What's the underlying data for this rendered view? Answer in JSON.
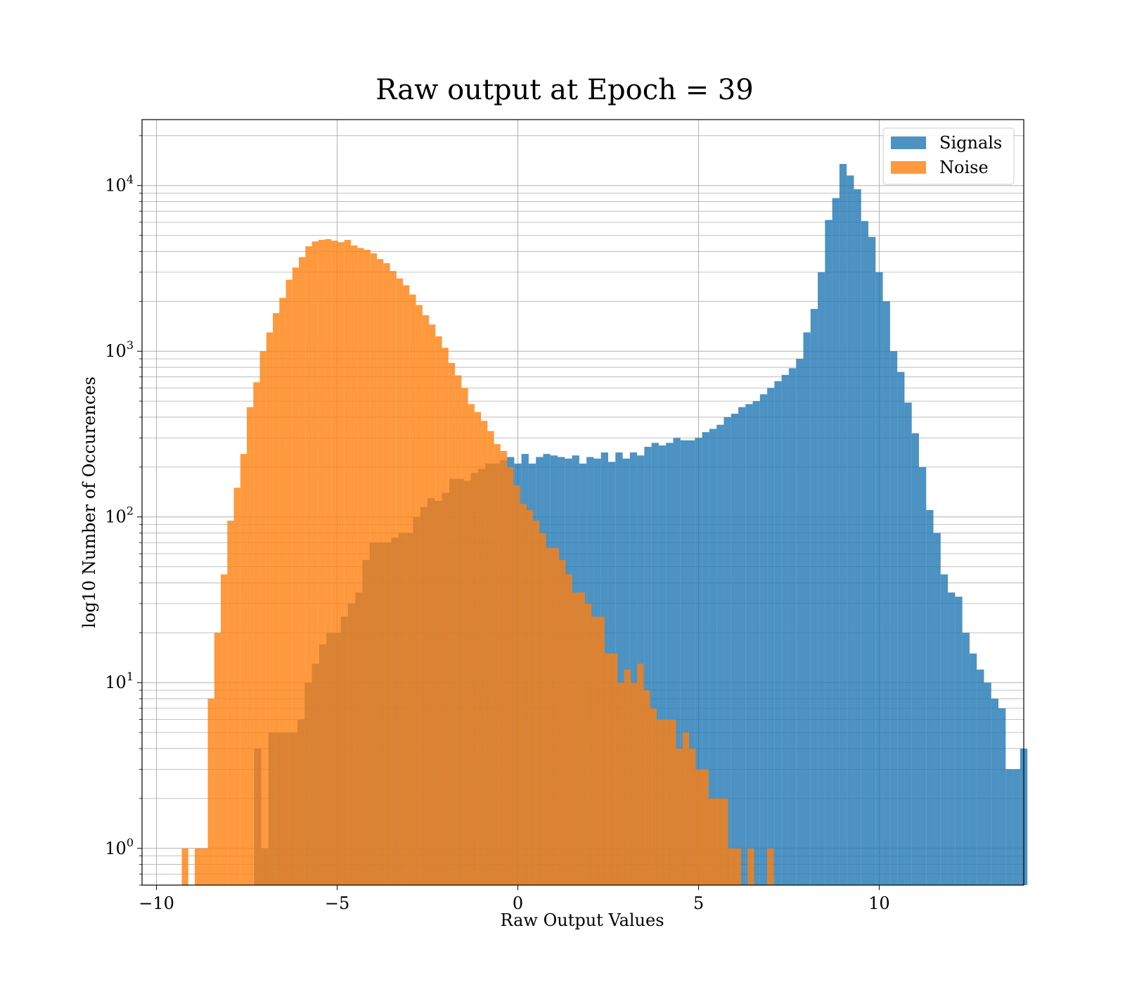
{
  "chart_data": {
    "type": "bar",
    "title": "Raw output at Epoch = 39",
    "xlabel": "Raw Output Values",
    "ylabel": "log10 Number of Occurences",
    "xlim": [
      -10.4,
      14.0
    ],
    "ylim": [
      0.6,
      25000
    ],
    "y_scale": "log",
    "grid": true,
    "legend_position": "top-right",
    "x_ticks": [
      {
        "value": -10,
        "label": "−10"
      },
      {
        "value": -5,
        "label": "−5"
      },
      {
        "value": 0,
        "label": "0"
      },
      {
        "value": 5,
        "label": "5"
      },
      {
        "value": 10,
        "label": "10"
      }
    ],
    "y_ticks": [
      {
        "value": 1,
        "base": "10",
        "exp": "0"
      },
      {
        "value": 10,
        "base": "10",
        "exp": "1"
      },
      {
        "value": 100,
        "base": "10",
        "exp": "2"
      },
      {
        "value": 1000,
        "base": "10",
        "exp": "3"
      },
      {
        "value": 10000,
        "base": "10",
        "exp": "4"
      }
    ],
    "series": [
      {
        "name": "Signals",
        "color": "#1f77b4",
        "opacity": 0.8,
        "x_start": -7.3,
        "bin_width": 0.2,
        "values": [
          4,
          1,
          5,
          5,
          5,
          5,
          6,
          10,
          13,
          17,
          20,
          20,
          25,
          30,
          35,
          55,
          70,
          70,
          70,
          75,
          80,
          80,
          100,
          115,
          130,
          125,
          140,
          170,
          170,
          165,
          185,
          195,
          210,
          210,
          220,
          230,
          210,
          240,
          210,
          230,
          240,
          235,
          230,
          225,
          235,
          210,
          230,
          225,
          245,
          215,
          245,
          225,
          245,
          235,
          265,
          280,
          270,
          280,
          300,
          290,
          290,
          300,
          325,
          340,
          360,
          400,
          420,
          460,
          480,
          500,
          550,
          600,
          660,
          720,
          790,
          900,
          1300,
          1800,
          3000,
          6200,
          8400,
          13500,
          11500,
          9500,
          6100,
          4900,
          3000,
          2000,
          1000,
          750,
          490,
          320,
          200,
          110,
          80,
          45,
          35,
          33,
          20,
          15,
          12,
          10,
          8,
          7,
          3,
          3,
          4
        ]
      },
      {
        "name": "Noise",
        "color": "#ff7f0e",
        "opacity": 0.8,
        "x_start": -9.3,
        "bin_width": 0.18,
        "values": [
          1,
          0,
          1,
          1,
          8,
          20,
          45,
          95,
          150,
          240,
          460,
          650,
          1000,
          1300,
          1700,
          2100,
          2700,
          3200,
          3700,
          4300,
          4600,
          4700,
          4750,
          4650,
          4550,
          4700,
          4350,
          4200,
          4100,
          3900,
          3600,
          3400,
          3050,
          2750,
          2500,
          2200,
          1900,
          1650,
          1450,
          1230,
          1050,
          850,
          715,
          600,
          480,
          430,
          380,
          330,
          275,
          250,
          200,
          155,
          120,
          110,
          95,
          80,
          65,
          65,
          55,
          45,
          35,
          35,
          30,
          25,
          25,
          15,
          15,
          10,
          12,
          10,
          13,
          9,
          7,
          6,
          6,
          6,
          4,
          5,
          4,
          3,
          3,
          2,
          2,
          2,
          1,
          1,
          0,
          1,
          0,
          0,
          1
        ]
      }
    ]
  }
}
